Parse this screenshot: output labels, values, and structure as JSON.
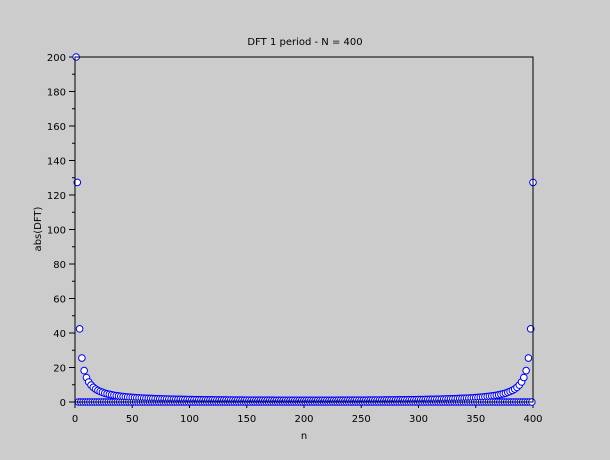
{
  "chart_data": {
    "type": "scatter",
    "title": "DFT 1 period - N = 400",
    "xlabel": "n",
    "ylabel": "abs(DFT)",
    "xlim": [
      0,
      400
    ],
    "ylim": [
      0,
      200
    ],
    "x_range": [
      1,
      400
    ],
    "xticks": [
      "0",
      "50",
      "100",
      "150",
      "200",
      "250",
      "300",
      "350",
      "400"
    ],
    "yticks": [
      "0",
      "20",
      "40",
      "60",
      "80",
      "100",
      "120",
      "140",
      "160",
      "180",
      "200"
    ],
    "grid": false,
    "marker": "circle",
    "marker_color": "#0000ff",
    "marker_fill": "#ffffff",
    "background": "#cccccc",
    "values": [
      200,
      127.3,
      0,
      42.4,
      0,
      25.5,
      0,
      18.2,
      0,
      14.2,
      0,
      11.6,
      0,
      9.8,
      0,
      8.5,
      0,
      7.5,
      0,
      6.7,
      0,
      6.1,
      0,
      5.6,
      0,
      5.1,
      0,
      4.75,
      0,
      4.43,
      0,
      4.15,
      0,
      3.9,
      0,
      3.68,
      0,
      3.49,
      0,
      3.32,
      0,
      3.16,
      0,
      3.02,
      0,
      2.89,
      0,
      2.77,
      0,
      2.66,
      0,
      2.56,
      0,
      2.47,
      0,
      2.39,
      0,
      2.31,
      0,
      2.24,
      0,
      2.17,
      0,
      2.11,
      0,
      2.05,
      0,
      1.99,
      0,
      1.94,
      0,
      1.89,
      0,
      1.84,
      0,
      1.8,
      0,
      1.76,
      0,
      1.72,
      0,
      1.68,
      0,
      1.65,
      0,
      1.62,
      0,
      1.58,
      0,
      1.55,
      0,
      1.53,
      0,
      1.5,
      0,
      1.47,
      0,
      1.45,
      0,
      1.43,
      0,
      1.4,
      0,
      1.38,
      0,
      1.36,
      0,
      1.34,
      0,
      1.32,
      0,
      1.31,
      0,
      1.29,
      0,
      1.27,
      0,
      1.26,
      0,
      1.24,
      0,
      1.23,
      0,
      1.22,
      0,
      1.2,
      0,
      1.19,
      0,
      1.18,
      0,
      1.17,
      0,
      1.16,
      0,
      1.15,
      0,
      1.14,
      0,
      1.13,
      0,
      1.12,
      0,
      1.11,
      0,
      1.1,
      0,
      1.09,
      0,
      1.09,
      0,
      1.08,
      0,
      1.07,
      0,
      1.07,
      0,
      1.06,
      0,
      1.05,
      0,
      1.05,
      0,
      1.04,
      0,
      1.04,
      0,
      1.03,
      0,
      1.03,
      0,
      1.03,
      0,
      1.02,
      0,
      1.02,
      0,
      1.02,
      0,
      1.01,
      0,
      1.01,
      0,
      1.01,
      0,
      1.01,
      0,
      1.01,
      0,
      1.0,
      0,
      1.0,
      0,
      1.0,
      0,
      1.0,
      0,
      1.0,
      0,
      1.0,
      0,
      1.0,
      0,
      1.0,
      0,
      1.0,
      0,
      1.0,
      0,
      1.0,
      0,
      1.0,
      0,
      1.01,
      0,
      1.01,
      0,
      1.01,
      0,
      1.01,
      0,
      1.01,
      0,
      1.02,
      0,
      1.02,
      0,
      1.02,
      0,
      1.03,
      0,
      1.03,
      0,
      1.03,
      0,
      1.04,
      0,
      1.04,
      0,
      1.05,
      0,
      1.05,
      0,
      1.06,
      0,
      1.07,
      0,
      1.07,
      0,
      1.08,
      0,
      1.09,
      0,
      1.09,
      0,
      1.1,
      0,
      1.11,
      0,
      1.12,
      0,
      1.13,
      0,
      1.14,
      0,
      1.15,
      0,
      1.16,
      0,
      1.17,
      0,
      1.18,
      0,
      1.19,
      0,
      1.2,
      0,
      1.22,
      0,
      1.23,
      0,
      1.24,
      0,
      1.26,
      0,
      1.27,
      0,
      1.29,
      0,
      1.31,
      0,
      1.32,
      0,
      1.34,
      0,
      1.36,
      0,
      1.38,
      0,
      1.4,
      0,
      1.43,
      0,
      1.45,
      0,
      1.47,
      0,
      1.5,
      0,
      1.53,
      0,
      1.55,
      0,
      1.58,
      0,
      1.62,
      0,
      1.65,
      0,
      1.68,
      0,
      1.72,
      0,
      1.76,
      0,
      1.8,
      0,
      1.84,
      0,
      1.89,
      0,
      1.94,
      0,
      1.99,
      0,
      2.05,
      0,
      2.11,
      0,
      2.17,
      0,
      2.24,
      0,
      2.31,
      0,
      2.39,
      0,
      2.47,
      0,
      2.56,
      0,
      2.66,
      0,
      2.77,
      0,
      2.89,
      0,
      3.02,
      0,
      3.16,
      0,
      3.32,
      0,
      3.49,
      0,
      3.68,
      0,
      3.9,
      0,
      4.15,
      0,
      4.43,
      0,
      4.75,
      0,
      5.1,
      0,
      5.6,
      0,
      6.1,
      0,
      6.7,
      0,
      7.5,
      0,
      8.5,
      0,
      9.8,
      0,
      11.6,
      0,
      14.2,
      0,
      18.2,
      0,
      25.5,
      0,
      42.4,
      0,
      127.3
    ]
  }
}
